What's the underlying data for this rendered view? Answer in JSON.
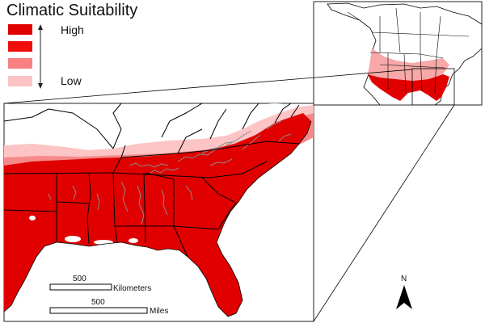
{
  "legend": {
    "title": "Climatic Suitability",
    "high_label": "High",
    "low_label": "Low",
    "colors": [
      "#e00000",
      "#f20d0d",
      "#f88080",
      "#fcc4c4"
    ]
  },
  "scale_bars": [
    {
      "value": "500",
      "unit": "Kilometers"
    },
    {
      "value": "500",
      "unit": "Miles"
    }
  ],
  "north_arrow": {
    "label": "N"
  },
  "colors": {
    "high_suitability": "#e00000",
    "medium_high": "#f02020",
    "medium": "#f48a8a",
    "low": "#fcc4c4",
    "unsuitable": "#ffffff",
    "boundaries": "#000000",
    "rivers_county_lines": "#888888"
  },
  "panels": [
    {
      "name": "Southeastern United States detail map"
    },
    {
      "name": "North America overview map"
    }
  ]
}
